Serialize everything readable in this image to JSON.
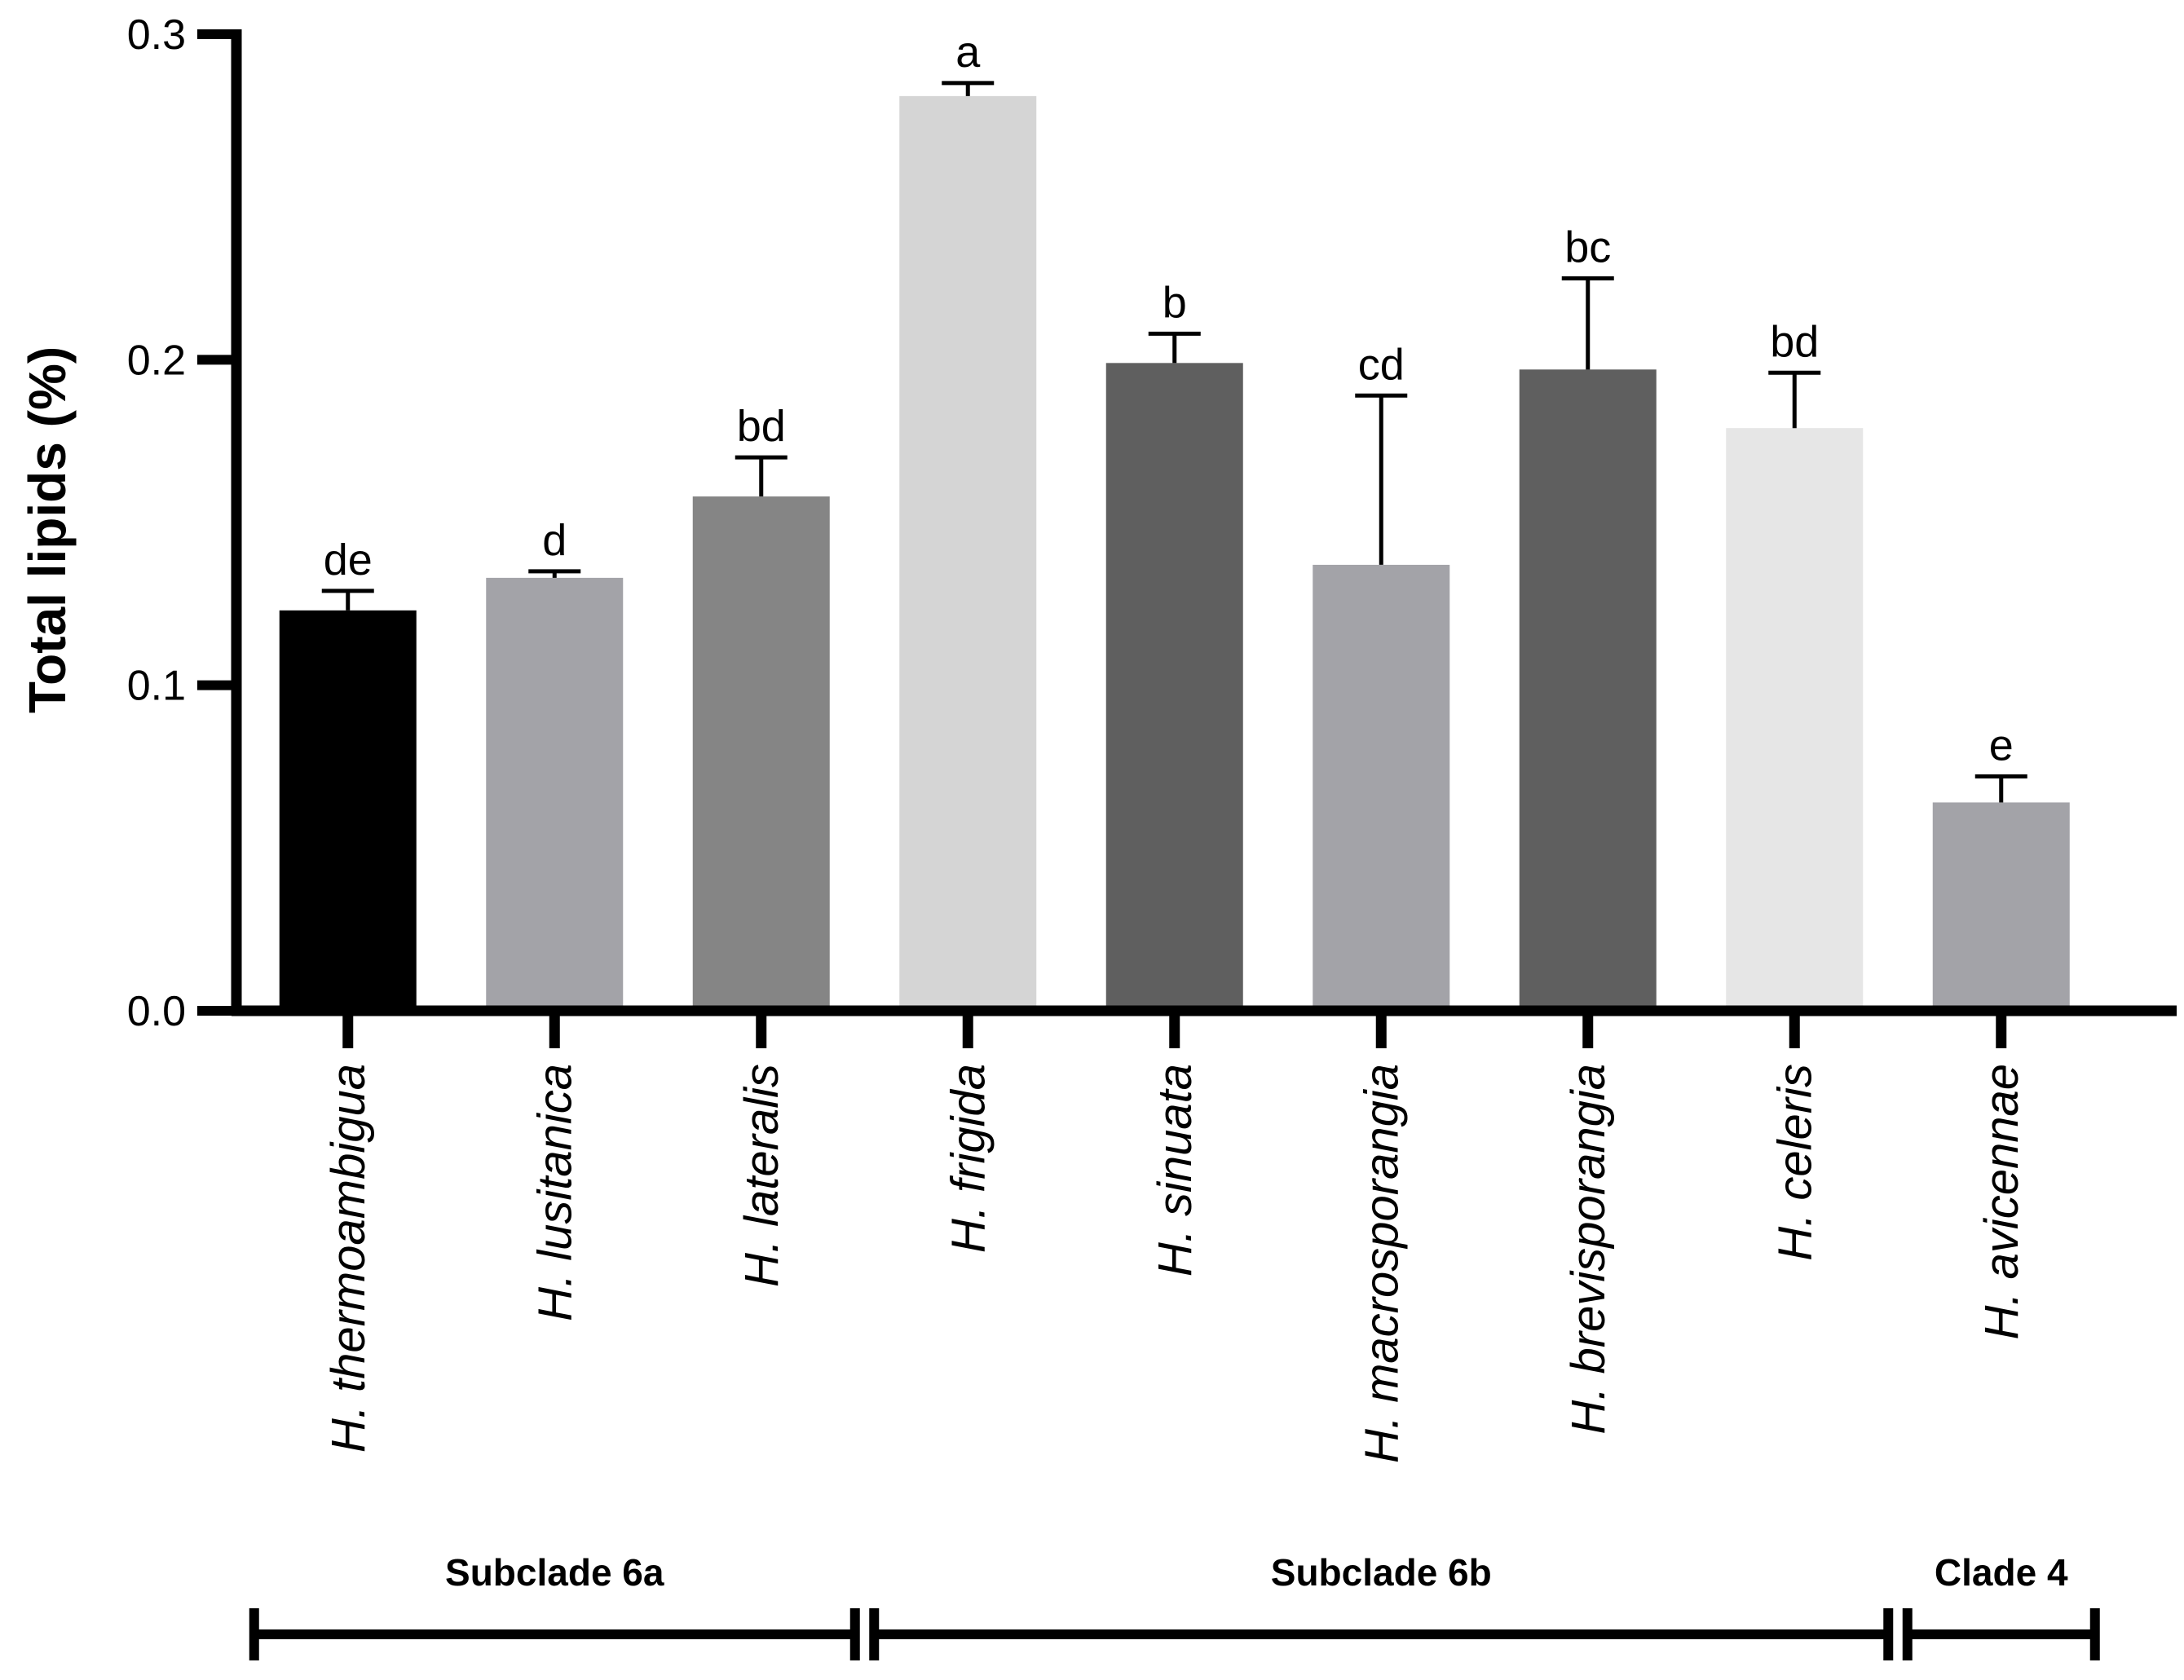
{
  "chart_data": {
    "type": "bar",
    "title": "",
    "xlabel": "",
    "ylabel": "Total lipids (%)",
    "ylim": [
      0,
      0.3
    ],
    "yticks": [
      "0.0",
      "0.1",
      "0.2",
      "0.3"
    ],
    "grid": false,
    "categories": [
      "H. thermoambigua",
      "H. lusitanica",
      "H. lateralis",
      "H. frigida",
      "H. sinuata",
      "H. macrosporangia",
      "H. brevisporangia",
      "H. celeris",
      "H. avicennae"
    ],
    "values": [
      0.123,
      0.133,
      0.158,
      0.281,
      0.199,
      0.137,
      0.197,
      0.179,
      0.064
    ],
    "errors": [
      0.006,
      0.002,
      0.012,
      0.004,
      0.009,
      0.052,
      0.028,
      0.017,
      0.008
    ],
    "significance": [
      "de",
      "d",
      "bd",
      "a",
      "b",
      "cd",
      "bc",
      "bd",
      "e"
    ],
    "colors": [
      "#000000",
      "#a3a3a8",
      "#858585",
      "#d5d5d5",
      "#5f5f5f",
      "#a3a3a8",
      "#5f5f5f",
      "#e6e6e6",
      "#a3a3a8"
    ],
    "groups": [
      {
        "label": "Subclade 6a",
        "start": 0,
        "end": 2
      },
      {
        "label": "Subclade 6b",
        "start": 3,
        "end": 7
      },
      {
        "label": "Clade 4",
        "start": 8,
        "end": 8
      }
    ]
  }
}
